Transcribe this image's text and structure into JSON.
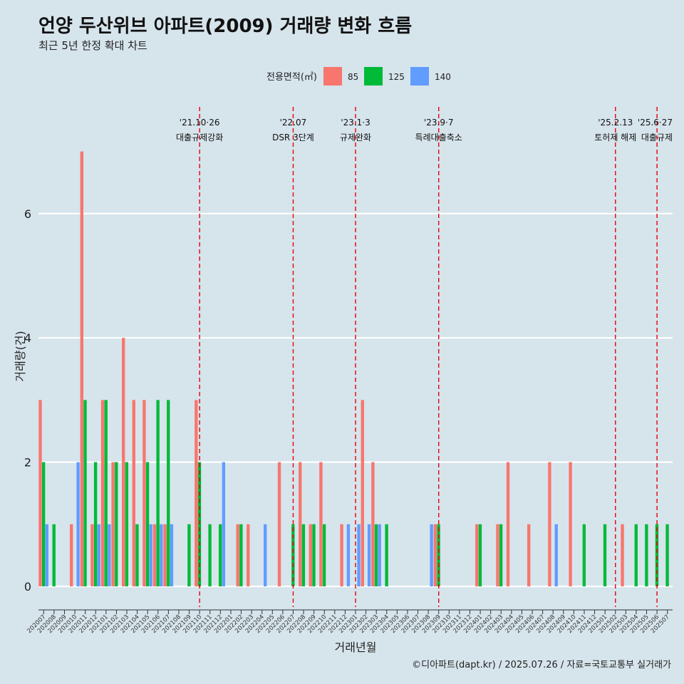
{
  "title": "언양 두산위브 아파트(2009) 거래량 변화 흐름",
  "subtitle": "최근 5년 한정 확대 차트",
  "caption": "©디아파트(dapt.kr) / 2025.07.26 / 자료=국토교통부 실거래가",
  "colors": {
    "85": "#f8766d",
    "125": "#00ba38",
    "140": "#619cff",
    "event_line": "#e8000b",
    "background": "#d6e4ec",
    "grid": "#ffffff"
  },
  "chart_data": {
    "type": "bar",
    "xlabel": "거래년월",
    "ylabel": "거래량(건)",
    "ylim": [
      0,
      7
    ],
    "yticks": [
      0,
      2,
      4,
      6
    ],
    "legend": {
      "title": "전용면적(㎡)",
      "placement": "top",
      "entries": [
        "85",
        "125",
        "140"
      ]
    },
    "categories": [
      "202007",
      "202008",
      "202009",
      "202010",
      "202011",
      "202012",
      "202101",
      "202102",
      "202103",
      "202104",
      "202105",
      "202106",
      "202107",
      "202108",
      "202109",
      "202110",
      "202111",
      "202112",
      "202201",
      "202202",
      "202203",
      "202204",
      "202205",
      "202206",
      "202207",
      "202208",
      "202209",
      "202210",
      "202211",
      "202212",
      "202301",
      "202302",
      "202303",
      "202304",
      "202305",
      "202306",
      "202307",
      "202308",
      "202309",
      "202310",
      "202311",
      "202312",
      "202401",
      "202402",
      "202403",
      "202404",
      "202405",
      "202406",
      "202407",
      "202408",
      "202409",
      "202410",
      "202411",
      "202412",
      "202501",
      "202502",
      "202503",
      "202504",
      "202505",
      "202506",
      "202507"
    ],
    "series": [
      {
        "name": "85",
        "values": [
          3,
          0,
          0,
          1,
          7,
          1,
          3,
          2,
          4,
          3,
          3,
          1,
          1,
          0,
          0,
          3,
          0,
          0,
          0,
          1,
          1,
          0,
          0,
          2,
          0,
          2,
          1,
          2,
          0,
          1,
          0,
          3,
          2,
          0,
          0,
          0,
          0,
          0,
          1,
          0,
          0,
          0,
          1,
          0,
          1,
          2,
          0,
          1,
          0,
          2,
          0,
          2,
          0,
          0,
          0,
          0,
          1,
          0,
          0,
          0,
          0
        ]
      },
      {
        "name": "125",
        "values": [
          2,
          1,
          0,
          0,
          3,
          2,
          3,
          2,
          2,
          1,
          2,
          3,
          3,
          0,
          1,
          2,
          1,
          1,
          0,
          1,
          0,
          0,
          0,
          0,
          1,
          1,
          1,
          1,
          0,
          0,
          0,
          0,
          1,
          1,
          0,
          0,
          0,
          0,
          1,
          0,
          0,
          0,
          1,
          0,
          1,
          0,
          0,
          0,
          0,
          0,
          0,
          0,
          1,
          0,
          1,
          0,
          0,
          1,
          1,
          1,
          1
        ]
      },
      {
        "name": "140",
        "values": [
          1,
          0,
          0,
          2,
          0,
          1,
          1,
          0,
          0,
          0,
          1,
          1,
          1,
          0,
          0,
          0,
          0,
          2,
          0,
          0,
          0,
          1,
          0,
          0,
          0,
          0,
          0,
          0,
          0,
          1,
          1,
          1,
          1,
          0,
          0,
          0,
          0,
          1,
          0,
          0,
          0,
          0,
          0,
          0,
          0,
          0,
          0,
          0,
          0,
          1,
          0,
          0,
          0,
          0,
          0,
          0,
          0,
          0,
          0,
          0,
          0
        ]
      }
    ],
    "annotations": [
      {
        "at": "202110",
        "date": "'21.10·26",
        "label": "대출규제강화"
      },
      {
        "at": "202207",
        "date": "'22.07",
        "label": "DSR 3단계"
      },
      {
        "at": "202301",
        "date": "'23.1·3",
        "label": "규제완화"
      },
      {
        "at": "202309",
        "date": "'23.9·7",
        "label": "특례대출축소"
      },
      {
        "at": "202502",
        "date": "'25.2.13",
        "label": "토허제 해제"
      },
      {
        "at": "202506",
        "date": "'25.6·27",
        "label": "대출규제"
      }
    ]
  }
}
